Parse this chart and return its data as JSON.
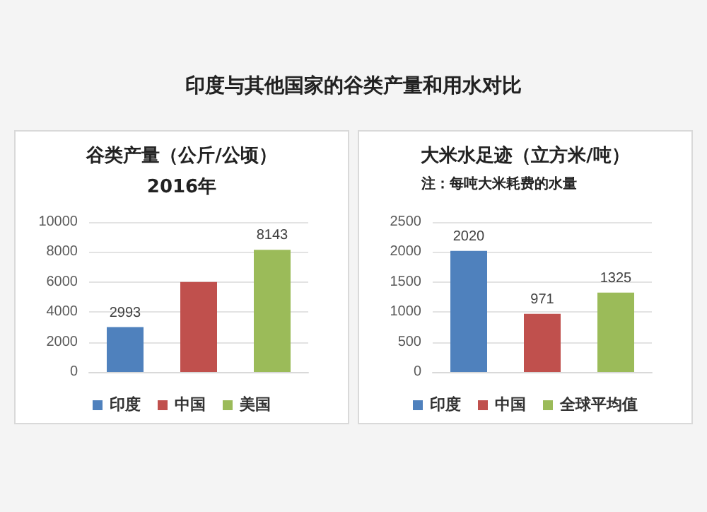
{
  "chart_data": [
    {
      "type": "other",
      "title": "印度与其他国家的谷类产量和用水对比"
    },
    {
      "type": "bar",
      "title": "谷类产量（公斤/公顷）",
      "subtitle": "2016年",
      "categories": [
        null
      ],
      "series": [
        {
          "name": "印度",
          "color": "#4f81bd",
          "values": [
            2993
          ],
          "value_labels": [
            "2993"
          ]
        },
        {
          "name": "中国",
          "color": "#c0504d",
          "values": [
            6000
          ],
          "value_labels": [
            null
          ]
        },
        {
          "name": "美国",
          "color": "#9bbb59",
          "values": [
            8143
          ],
          "value_labels": [
            "8143"
          ]
        }
      ],
      "ylim": [
        0,
        10000
      ],
      "yticks": [
        0,
        2000,
        4000,
        6000,
        8000,
        10000
      ],
      "grid": "y",
      "legend": "bottom",
      "tick_labels": "y"
    },
    {
      "type": "bar",
      "title": "大米水足迹（立方米/吨）",
      "subtitle": "注：每吨大米耗费的水量",
      "categories": [
        null
      ],
      "series": [
        {
          "name": "印度",
          "color": "#4f81bd",
          "values": [
            2020
          ]
        },
        {
          "name": "中国",
          "color": "#c0504d",
          "values": [
            971
          ]
        },
        {
          "name": "全球平均值",
          "color": "#9bbb59",
          "values": [
            1325
          ]
        }
      ],
      "data_labels": true,
      "ylim": [
        0,
        2500
      ],
      "yticks": [
        0,
        500,
        1000,
        1500,
        2000,
        2500
      ],
      "grid": "y",
      "legend": "bottom",
      "tick_labels": "y"
    }
  ]
}
